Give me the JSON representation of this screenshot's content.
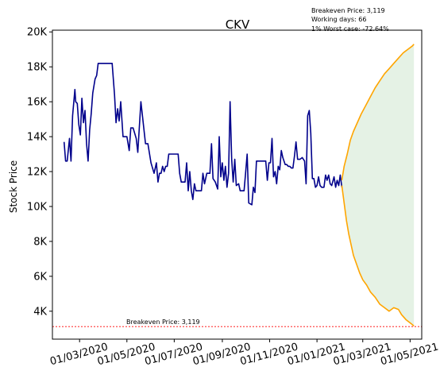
{
  "chart_data": {
    "type": "line",
    "title": "CKV",
    "ylabel": "Stock Price",
    "xlabel": "",
    "x_range": [
      "2020-01-26",
      "2021-05-16"
    ],
    "ylim": [
      2400,
      20100
    ],
    "y_ticks": [
      4000,
      6000,
      8000,
      10000,
      12000,
      14000,
      16000,
      18000,
      20000
    ],
    "y_tick_labels": [
      "4K",
      "6K",
      "8K",
      "10K",
      "12K",
      "14K",
      "16K",
      "18K",
      "20K"
    ],
    "x_ticks": [
      "2020-03-01",
      "2020-05-01",
      "2020-07-01",
      "2020-09-01",
      "2020-11-01",
      "2021-01-01",
      "2021-03-01",
      "2021-05-01"
    ],
    "x_tick_labels": [
      "01/03/2020",
      "01/05/2020",
      "01/07/2020",
      "01/09/2020",
      "01/11/2020",
      "01/01/2021",
      "01/03/2021",
      "01/05/2021"
    ],
    "grid": false,
    "colors": {
      "history": "#00008b",
      "forecast_bounds": "#ffa500",
      "forecast_fill": "#e5f2e5",
      "breakeven": "#ff0000"
    },
    "info_lines": [
      "Breakeven Price: 3,119",
      "Working days: 66",
      "1% Worst case: -72.64%"
    ],
    "breakeven": {
      "value": 3119,
      "label": "Breakeven Price: 3,119"
    },
    "series": [
      {
        "role": "history",
        "points": [
          [
            "2020-02-10",
            13700
          ],
          [
            "2020-02-12",
            12600
          ],
          [
            "2020-02-14",
            12600
          ],
          [
            "2020-02-17",
            13900
          ],
          [
            "2020-02-19",
            12600
          ],
          [
            "2020-02-21",
            15200
          ],
          [
            "2020-02-24",
            16700
          ],
          [
            "2020-02-25",
            16000
          ],
          [
            "2020-02-27",
            15900
          ],
          [
            "2020-02-29",
            14700
          ],
          [
            "2020-03-02",
            14100
          ],
          [
            "2020-03-04",
            16200
          ],
          [
            "2020-03-06",
            14800
          ],
          [
            "2020-03-08",
            15500
          ],
          [
            "2020-03-10",
            13600
          ],
          [
            "2020-03-12",
            12600
          ],
          [
            "2020-03-14",
            14400
          ],
          [
            "2020-03-16",
            15300
          ],
          [
            "2020-03-18",
            16500
          ],
          [
            "2020-03-21",
            17300
          ],
          [
            "2020-03-23",
            17500
          ],
          [
            "2020-03-25",
            18200
          ],
          [
            "2020-03-30",
            18200
          ],
          [
            "2020-04-05",
            18200
          ],
          [
            "2020-04-12",
            18200
          ],
          [
            "2020-04-15",
            16400
          ],
          [
            "2020-04-17",
            14800
          ],
          [
            "2020-04-19",
            15600
          ],
          [
            "2020-04-21",
            14900
          ],
          [
            "2020-04-23",
            16000
          ],
          [
            "2020-04-26",
            14000
          ],
          [
            "2020-05-01",
            14000
          ],
          [
            "2020-05-04",
            13200
          ],
          [
            "2020-05-06",
            14500
          ],
          [
            "2020-05-09",
            14500
          ],
          [
            "2020-05-13",
            13900
          ],
          [
            "2020-05-15",
            13100
          ],
          [
            "2020-05-19",
            16000
          ],
          [
            "2020-05-22",
            14800
          ],
          [
            "2020-05-25",
            13600
          ],
          [
            "2020-05-28",
            13600
          ],
          [
            "2020-06-01",
            12500
          ],
          [
            "2020-06-05",
            11900
          ],
          [
            "2020-06-08",
            12500
          ],
          [
            "2020-06-10",
            11400
          ],
          [
            "2020-06-12",
            11900
          ],
          [
            "2020-06-14",
            11900
          ],
          [
            "2020-06-16",
            12300
          ],
          [
            "2020-06-18",
            12000
          ],
          [
            "2020-06-20",
            12300
          ],
          [
            "2020-06-22",
            12300
          ],
          [
            "2020-06-24",
            13000
          ],
          [
            "2020-07-06",
            13000
          ],
          [
            "2020-07-08",
            11900
          ],
          [
            "2020-07-10",
            11400
          ],
          [
            "2020-07-15",
            11400
          ],
          [
            "2020-07-17",
            12500
          ],
          [
            "2020-07-19",
            10900
          ],
          [
            "2020-07-21",
            12000
          ],
          [
            "2020-07-23",
            10900
          ],
          [
            "2020-07-25",
            10400
          ],
          [
            "2020-07-27",
            11300
          ],
          [
            "2020-07-29",
            10900
          ],
          [
            "2020-08-05",
            10900
          ],
          [
            "2020-08-07",
            11900
          ],
          [
            "2020-08-09",
            11300
          ],
          [
            "2020-08-12",
            11900
          ],
          [
            "2020-08-16",
            11900
          ],
          [
            "2020-08-18",
            13600
          ],
          [
            "2020-08-20",
            11600
          ],
          [
            "2020-08-23",
            11400
          ],
          [
            "2020-08-26",
            11000
          ],
          [
            "2020-08-28",
            14000
          ],
          [
            "2020-08-30",
            11700
          ],
          [
            "2020-09-01",
            12500
          ],
          [
            "2020-09-03",
            11500
          ],
          [
            "2020-09-05",
            12300
          ],
          [
            "2020-09-07",
            11100
          ],
          [
            "2020-09-09",
            11900
          ],
          [
            "2020-09-11",
            16000
          ],
          [
            "2020-09-13",
            12700
          ],
          [
            "2020-09-15",
            11400
          ],
          [
            "2020-09-17",
            12700
          ],
          [
            "2020-09-19",
            11200
          ],
          [
            "2020-09-22",
            11300
          ],
          [
            "2020-09-24",
            10900
          ],
          [
            "2020-09-29",
            10900
          ],
          [
            "2020-10-01",
            11900
          ],
          [
            "2020-10-03",
            13000
          ],
          [
            "2020-10-05",
            10200
          ],
          [
            "2020-10-09",
            10100
          ],
          [
            "2020-10-11",
            11100
          ],
          [
            "2020-10-13",
            10800
          ],
          [
            "2020-10-15",
            12600
          ],
          [
            "2020-10-27",
            12600
          ],
          [
            "2020-10-29",
            11500
          ],
          [
            "2020-10-31",
            12500
          ],
          [
            "2020-11-02",
            12500
          ],
          [
            "2020-11-04",
            13900
          ],
          [
            "2020-11-06",
            11700
          ],
          [
            "2020-11-08",
            12000
          ],
          [
            "2020-11-10",
            11300
          ],
          [
            "2020-11-12",
            12300
          ],
          [
            "2020-11-14",
            12100
          ],
          [
            "2020-11-16",
            13200
          ],
          [
            "2020-11-18",
            12800
          ],
          [
            "2020-11-21",
            12400
          ],
          [
            "2020-11-23",
            12400
          ],
          [
            "2020-11-25",
            12300
          ],
          [
            "2020-11-27",
            12300
          ],
          [
            "2020-11-29",
            12200
          ],
          [
            "2020-12-01",
            12200
          ],
          [
            "2020-12-03",
            12900
          ],
          [
            "2020-12-05",
            13700
          ],
          [
            "2020-12-07",
            12700
          ],
          [
            "2020-12-10",
            12700
          ],
          [
            "2020-12-13",
            12800
          ],
          [
            "2020-12-16",
            12600
          ],
          [
            "2020-12-18",
            11300
          ],
          [
            "2020-12-20",
            15200
          ],
          [
            "2020-12-22",
            15500
          ],
          [
            "2020-12-24",
            14200
          ],
          [
            "2020-12-26",
            11600
          ],
          [
            "2020-12-28",
            11600
          ],
          [
            "2020-12-30",
            11100
          ],
          [
            "2021-01-01",
            11200
          ],
          [
            "2021-01-03",
            11700
          ],
          [
            "2021-01-05",
            11200
          ],
          [
            "2021-01-07",
            11100
          ],
          [
            "2021-01-10",
            11100
          ],
          [
            "2021-01-12",
            11800
          ],
          [
            "2021-01-14",
            11500
          ],
          [
            "2021-01-16",
            11800
          ],
          [
            "2021-01-18",
            11300
          ],
          [
            "2021-01-20",
            11200
          ],
          [
            "2021-01-23",
            11700
          ],
          [
            "2021-01-25",
            11100
          ],
          [
            "2021-01-27",
            11500
          ],
          [
            "2021-01-29",
            11200
          ],
          [
            "2021-01-31",
            11800
          ],
          [
            "2021-02-02",
            11100
          ]
        ]
      },
      {
        "role": "forecast-upper",
        "points": [
          [
            "2021-02-02",
            11500
          ],
          [
            "2021-02-05",
            12300
          ],
          [
            "2021-02-09",
            13000
          ],
          [
            "2021-02-13",
            13800
          ],
          [
            "2021-02-17",
            14300
          ],
          [
            "2021-02-22",
            14800
          ],
          [
            "2021-02-27",
            15300
          ],
          [
            "2021-03-05",
            15800
          ],
          [
            "2021-03-11",
            16300
          ],
          [
            "2021-03-17",
            16800
          ],
          [
            "2021-03-23",
            17200
          ],
          [
            "2021-03-29",
            17600
          ],
          [
            "2021-04-04",
            17900
          ],
          [
            "2021-04-10",
            18200
          ],
          [
            "2021-04-16",
            18500
          ],
          [
            "2021-04-22",
            18800
          ],
          [
            "2021-04-28",
            19000
          ],
          [
            "2021-05-04",
            19200
          ],
          [
            "2021-05-06",
            19300
          ]
        ]
      },
      {
        "role": "forecast-lower",
        "points": [
          [
            "2021-02-02",
            11200
          ],
          [
            "2021-02-05",
            10200
          ],
          [
            "2021-02-08",
            9200
          ],
          [
            "2021-02-11",
            8400
          ],
          [
            "2021-02-14",
            7800
          ],
          [
            "2021-02-17",
            7200
          ],
          [
            "2021-02-21",
            6700
          ],
          [
            "2021-02-25",
            6200
          ],
          [
            "2021-03-01",
            5800
          ],
          [
            "2021-03-06",
            5500
          ],
          [
            "2021-03-11",
            5100
          ],
          [
            "2021-03-17",
            4800
          ],
          [
            "2021-03-23",
            4400
          ],
          [
            "2021-03-29",
            4200
          ],
          [
            "2021-04-04",
            4000
          ],
          [
            "2021-04-10",
            4200
          ],
          [
            "2021-04-16",
            4100
          ],
          [
            "2021-04-20",
            3800
          ],
          [
            "2021-04-26",
            3500
          ],
          [
            "2021-05-02",
            3300
          ],
          [
            "2021-05-06",
            3150
          ]
        ]
      }
    ]
  }
}
